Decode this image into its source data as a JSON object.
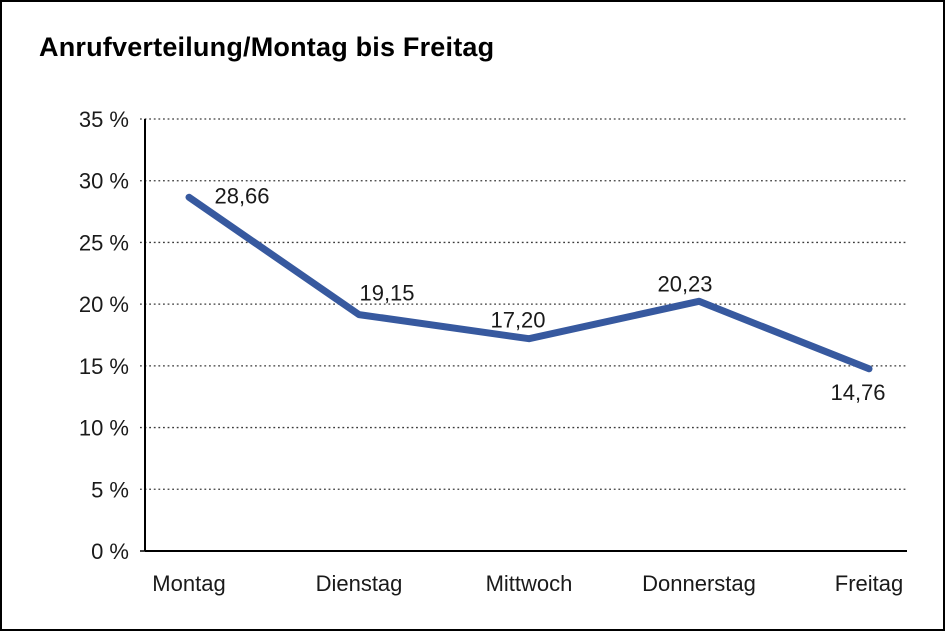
{
  "title": "Anrufverteilung/Montag bis Freitag",
  "chart_data": {
    "type": "line",
    "title": "Anrufverteilung/Montag bis Freitag",
    "categories": [
      "Montag",
      "Dienstag",
      "Mittwoch",
      "Donnerstag",
      "Freitag"
    ],
    "values": [
      28.66,
      19.15,
      17.2,
      20.23,
      14.76
    ],
    "value_labels": [
      "28,66",
      "19,15",
      "17,20",
      "20,23",
      "14,76"
    ],
    "xlabel": "",
    "ylabel": "",
    "ylim": [
      0,
      35
    ],
    "ytick_values": [
      0,
      5,
      10,
      15,
      20,
      25,
      30,
      35
    ],
    "ytick_labels": [
      "0 %",
      "5 %",
      "10 %",
      "15 %",
      "20 %",
      "25 %",
      "30 %",
      "35 %"
    ],
    "grid": "horizontal-dotted",
    "legend": "none",
    "series_name": "Anrufverteilung"
  },
  "colors": {
    "line": "#37599F",
    "axis": "#000000",
    "grid": "#3a3a3a",
    "text": "#1a1a1a",
    "background": "#ffffff",
    "frame_border": "#000000"
  }
}
